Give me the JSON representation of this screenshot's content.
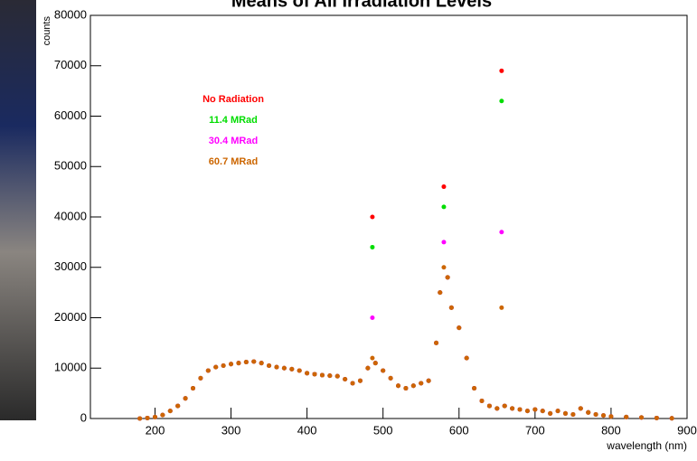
{
  "chart_data": {
    "type": "scatter",
    "title": "Means of All Irradiation Levels",
    "x_label": "wavelength (nm)",
    "y_label": "counts",
    "x": [
      180,
      190,
      200,
      210,
      220,
      230,
      240,
      250,
      260,
      270,
      280,
      290,
      300,
      310,
      320,
      330,
      340,
      350,
      360,
      370,
      380,
      390,
      400,
      410,
      420,
      430,
      440,
      450,
      460,
      470,
      480,
      486,
      490,
      500,
      510,
      520,
      530,
      540,
      550,
      560,
      570,
      575,
      580,
      585,
      590,
      600,
      610,
      620,
      630,
      640,
      650,
      656,
      660,
      670,
      680,
      690,
      700,
      710,
      720,
      730,
      740,
      750,
      760,
      770,
      780,
      790,
      800,
      820,
      840,
      860,
      880
    ],
    "series": [
      {
        "name": "No Radiation",
        "color": "#ff0000",
        "values": [
          0,
          100,
          300,
          700,
          1500,
          2500,
          4000,
          6000,
          8000,
          9500,
          10200,
          10500,
          10800,
          11000,
          11200,
          11300,
          11000,
          10500,
          10200,
          10000,
          9800,
          9500,
          9000,
          8800,
          8600,
          8500,
          8400,
          7800,
          7000,
          7500,
          10000,
          40000,
          11000,
          9500,
          8000,
          6500,
          6000,
          6500,
          7000,
          7500,
          15000,
          25000,
          46000,
          28000,
          22000,
          18000,
          12000,
          6000,
          3500,
          2500,
          2000,
          69000,
          2500,
          2000,
          1800,
          1500,
          1800,
          1500,
          1000,
          1500,
          1000,
          800,
          2000,
          1200,
          800,
          600,
          400,
          300,
          200,
          100,
          50
        ]
      },
      {
        "name": "11.4 MRad",
        "color": "#00dd00",
        "values": [
          0,
          100,
          300,
          700,
          1500,
          2500,
          4000,
          6000,
          8000,
          9500,
          10200,
          10500,
          10800,
          11000,
          11200,
          11300,
          11000,
          10500,
          10200,
          10000,
          9800,
          9500,
          9000,
          8800,
          8600,
          8500,
          8400,
          7800,
          7000,
          7500,
          10000,
          34000,
          11000,
          9500,
          8000,
          6500,
          6000,
          6500,
          7000,
          7500,
          15000,
          25000,
          42000,
          28000,
          22000,
          18000,
          12000,
          6000,
          3500,
          2500,
          2000,
          63000,
          2500,
          2000,
          1800,
          1500,
          1800,
          1500,
          1000,
          1500,
          1000,
          800,
          2000,
          1200,
          800,
          600,
          400,
          300,
          200,
          100,
          50
        ]
      },
      {
        "name": "30.4 MRad",
        "color": "#ff00ff",
        "values": [
          0,
          100,
          300,
          700,
          1500,
          2500,
          4000,
          6000,
          8000,
          9500,
          10200,
          10500,
          10800,
          11000,
          11200,
          11300,
          11000,
          10500,
          10200,
          10000,
          9800,
          9500,
          9000,
          8800,
          8600,
          8500,
          8400,
          7800,
          7000,
          7500,
          10000,
          20000,
          11000,
          9500,
          8000,
          6500,
          6000,
          6500,
          7000,
          7500,
          15000,
          25000,
          35000,
          28000,
          22000,
          18000,
          12000,
          6000,
          3500,
          2500,
          2000,
          37000,
          2500,
          2000,
          1800,
          1500,
          1800,
          1500,
          1000,
          1500,
          1000,
          800,
          2000,
          1200,
          800,
          600,
          400,
          300,
          200,
          100,
          50
        ]
      },
      {
        "name": "60.7 MRad",
        "color": "#cc6600",
        "values": [
          0,
          100,
          300,
          700,
          1500,
          2500,
          4000,
          6000,
          8000,
          9500,
          10200,
          10500,
          10800,
          11000,
          11200,
          11300,
          11000,
          10500,
          10200,
          10000,
          9800,
          9500,
          9000,
          8800,
          8600,
          8500,
          8400,
          7800,
          7000,
          7500,
          10000,
          12000,
          11000,
          9500,
          8000,
          6500,
          6000,
          6500,
          7000,
          7500,
          15000,
          25000,
          30000,
          28000,
          22000,
          18000,
          12000,
          6000,
          3500,
          2500,
          2000,
          22000,
          2500,
          2000,
          1800,
          1500,
          1800,
          1500,
          1000,
          1500,
          1000,
          800,
          2000,
          1200,
          800,
          600,
          400,
          300,
          200,
          100,
          50
        ]
      }
    ],
    "xlim": [
      115,
      900
    ],
    "xticks": [
      200,
      300,
      400,
      500,
      600,
      700,
      800,
      900
    ],
    "ylim": [
      0,
      80000
    ],
    "yticks": [
      0,
      10000,
      20000,
      30000,
      40000,
      50000,
      60000,
      70000,
      80000
    ]
  }
}
